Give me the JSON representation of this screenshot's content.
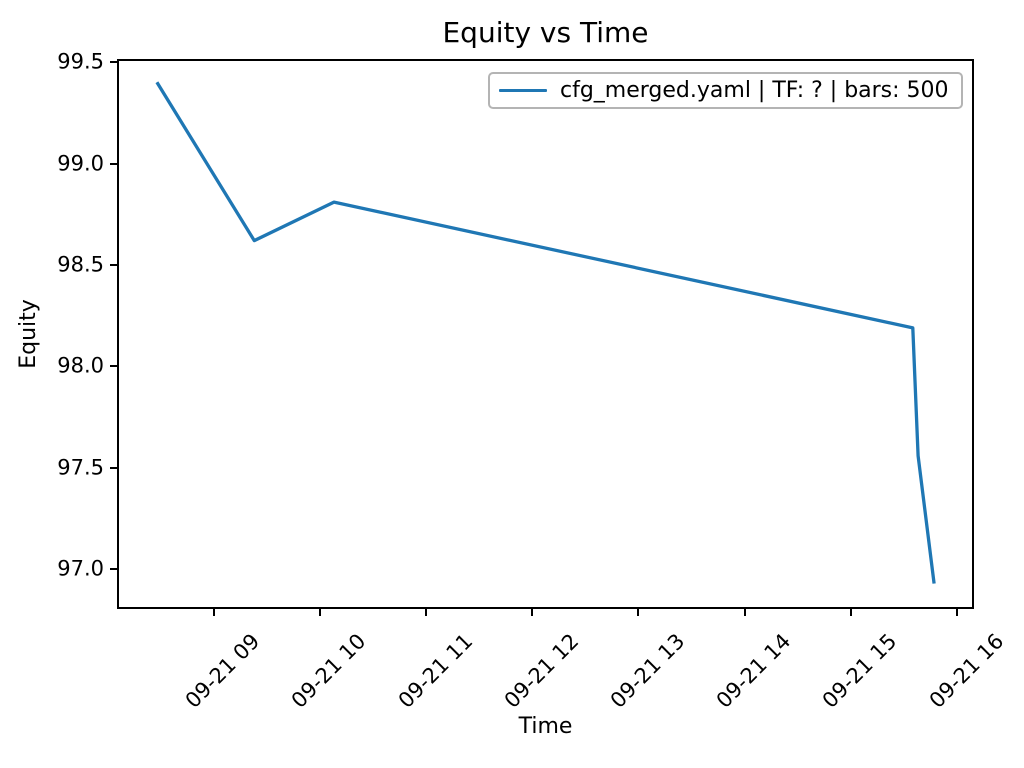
{
  "chart_data": {
    "type": "line",
    "title": "Equity vs Time",
    "xlabel": "Time",
    "ylabel": "Equity",
    "grid": false,
    "legend_position": "upper right",
    "axis_color": "#000000",
    "background_color": "#ffffff",
    "series": [
      {
        "name": "cfg_merged.yaml | TF: ? | bars: 500",
        "color": "#1f77b4",
        "points": [
          {
            "time": "09-21 08:28",
            "equity": 99.4
          },
          {
            "time": "09-21 09:23",
            "equity": 98.62
          },
          {
            "time": "09-21 10:08",
            "equity": 98.81
          },
          {
            "time": "09-21 15:35",
            "equity": 98.19
          },
          {
            "time": "09-21 15:38",
            "equity": 97.56
          },
          {
            "time": "09-21 15:47",
            "equity": 96.93
          }
        ]
      }
    ],
    "x_ticks": [
      "09-21 09",
      "09-21 10",
      "09-21 11",
      "09-21 12",
      "09-21 13",
      "09-21 14",
      "09-21 15",
      "09-21 16"
    ],
    "x_tick_rotation_deg": 45,
    "y_ticks": [
      99.5,
      99.0,
      98.5,
      98.0,
      97.5,
      97.0
    ],
    "xlim": [
      "09-21 08:06",
      "09-21 16:09"
    ],
    "ylim": [
      96.81,
      99.51
    ]
  }
}
